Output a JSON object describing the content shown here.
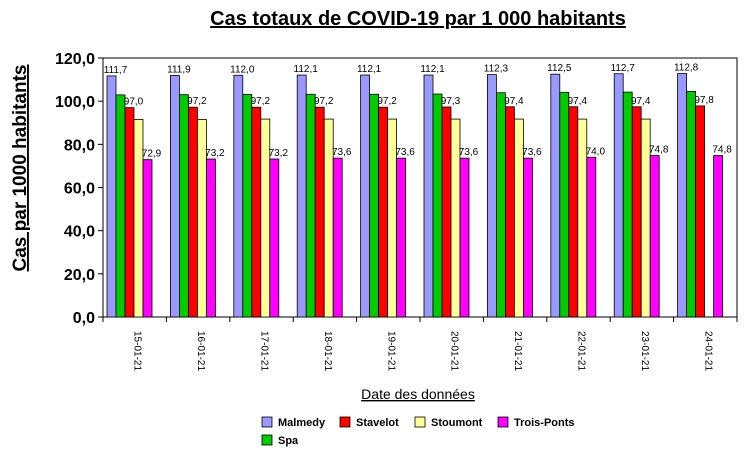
{
  "chart_data": {
    "type": "bar",
    "title": "Cas totaux de COVID-19 par 1 000 habitants",
    "xlabel": "Date des données",
    "ylabel": "Cas par 1000 habitants",
    "ylim": [
      0,
      120
    ],
    "yticks": [
      0,
      20,
      40,
      60,
      80,
      100,
      120
    ],
    "ytick_labels": [
      "0,0",
      "20,0",
      "40,0",
      "60,0",
      "80,0",
      "100,0",
      "120,0"
    ],
    "grid": false,
    "legend_position": "bottom",
    "categories": [
      "15-01-21",
      "16-01-21",
      "17-01-21",
      "18-01-21",
      "19-01-21",
      "20-01-21",
      "21-01-21",
      "22-01-21",
      "23-01-21",
      "24-01-21"
    ],
    "series": [
      {
        "name": "Malmedy",
        "color": "#9999ff",
        "values": [
          111.7,
          111.9,
          112.0,
          112.1,
          112.1,
          112.1,
          112.3,
          112.5,
          112.7,
          112.8
        ],
        "labels": [
          "111,7",
          "111,9",
          "112,0",
          "112,1",
          "112,1",
          "112,1",
          "112,3",
          "112,5",
          "112,7",
          "112,8"
        ]
      },
      {
        "name": "Spa",
        "color": "#00cc00",
        "values": [
          102.9,
          103.0,
          103.1,
          103.2,
          103.2,
          103.3,
          103.9,
          104.1,
          104.2,
          104.5
        ]
      },
      {
        "name": "Stavelot",
        "color": "#ff0000",
        "values": [
          97.0,
          97.2,
          97.2,
          97.2,
          97.2,
          97.3,
          97.4,
          97.4,
          97.4,
          97.8
        ],
        "labels": [
          "97,0",
          "97,2",
          "97,2",
          "97,2",
          "97,2",
          "97,3",
          "97,4",
          "97,4",
          "97,4",
          "97,8"
        ]
      },
      {
        "name": "Stoumont",
        "color": "#ffff99",
        "values": [
          91.5,
          91.5,
          91.7,
          91.7,
          91.7,
          91.7,
          91.7,
          91.7,
          91.7,
          null
        ]
      },
      {
        "name": "Trois-Ponts",
        "color": "#ff00ff",
        "values": [
          72.9,
          73.2,
          73.2,
          73.6,
          73.6,
          73.6,
          73.6,
          74.0,
          74.8,
          74.8
        ],
        "labels": [
          "72,9",
          "73,2",
          "73,2",
          "73,6",
          "73,6",
          "73,6",
          "73,6",
          "74,0",
          "74,8",
          "74,8"
        ]
      }
    ],
    "legend_order": [
      "Malmedy",
      "Stavelot",
      "Stoumont",
      "Trois-Ponts",
      "Spa"
    ]
  }
}
